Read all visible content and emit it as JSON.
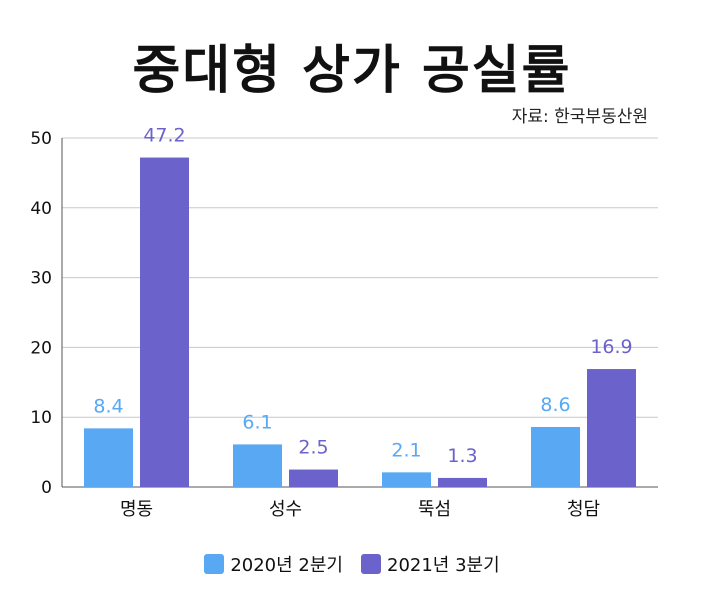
{
  "title": "중대형 상가 공실률",
  "source": "자료: 한국부동산원",
  "colors": {
    "series1": "#58a8f4",
    "series2": "#6b63cb",
    "grid": "#c8c8c8",
    "axis": "#555555"
  },
  "chart_data": {
    "type": "bar",
    "title": "중대형 상가 공실률",
    "categories": [
      "명동",
      "성수",
      "뚝섬",
      "청담"
    ],
    "series": [
      {
        "name": "2020년 2분기",
        "values": [
          8.4,
          6.1,
          2.1,
          8.6
        ]
      },
      {
        "name": "2021년 3분기",
        "values": [
          47.2,
          2.5,
          1.3,
          16.9
        ]
      }
    ],
    "ylim": [
      0,
      50
    ],
    "yticks": [
      0,
      10,
      20,
      30,
      40,
      50
    ],
    "grid": true,
    "legend": "bottom"
  }
}
